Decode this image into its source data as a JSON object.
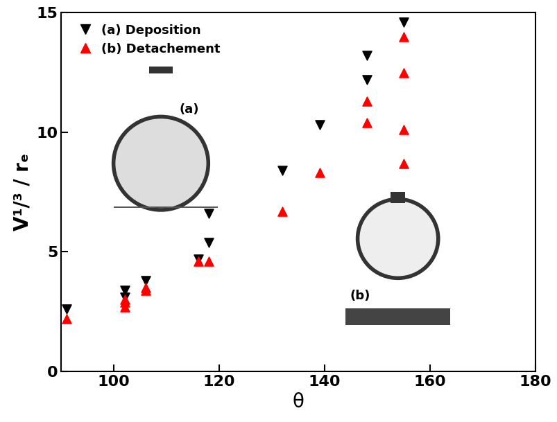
{
  "chart_data": {
    "type": "scatter",
    "x_label": "θ",
    "y_label": "V¹/³ / rₑ",
    "xlim": [
      90,
      180
    ],
    "xticks": [
      100,
      120,
      140,
      160,
      180
    ],
    "ylim": [
      0,
      15
    ],
    "yticks": [
      0,
      5,
      10,
      15
    ],
    "legend": "upper left",
    "series": [
      {
        "name": "(a) Deposition",
        "color": "#000000",
        "marker": "v",
        "x": [
          91,
          102,
          102,
          106,
          116,
          118,
          118,
          132,
          139,
          148,
          148,
          155
        ],
        "values": [
          2.6,
          3.4,
          3.1,
          3.8,
          4.7,
          6.6,
          5.4,
          8.4,
          10.3,
          13.2,
          12.2,
          14.6
        ]
      },
      {
        "name": "(b) Detachement",
        "color": "#ff0000",
        "marker": "^",
        "x": [
          91,
          102,
          102,
          102,
          106,
          106,
          116,
          118,
          132,
          139,
          148,
          148,
          155,
          155,
          155,
          155
        ],
        "values": [
          2.2,
          3.0,
          2.7,
          2.9,
          3.5,
          3.4,
          4.6,
          4.6,
          6.7,
          8.3,
          11.3,
          10.4,
          14.0,
          12.5,
          10.1,
          8.7
        ]
      }
    ],
    "annotations": [
      {
        "text": "(a)"
      },
      {
        "text": "(b)"
      }
    ]
  }
}
